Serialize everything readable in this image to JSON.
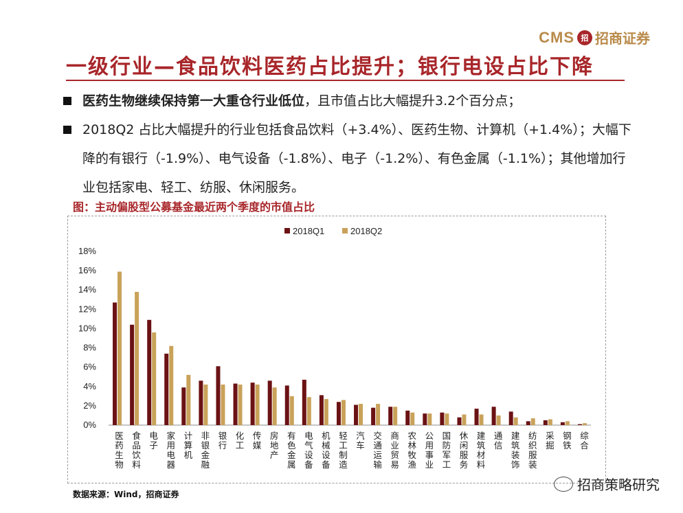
{
  "header": {
    "logo_cms": "CMS",
    "logo_badge": "招",
    "logo_name": "招商证券",
    "title": "一级行业—食品饮料医药占比提升；银行电设占比下降"
  },
  "bullets": {
    "b1_strong": "医药生物继续保持第一大重仓行业低位",
    "b1_rest": "，且市值占比大幅提升3.2个百分点；",
    "b2": "2018Q2 占比大幅提升的行业包括食品饮料（+3.4%）、医药生物、计算机（+1.4%）；大幅下降的有银行（-1.9%）、电气设备（-1.8%）、电子（-1.2%）、有色金属（-1.1%）；其他增加行业包括家电、轻工、纺服、休闲服务。"
  },
  "caption": "图：主动偏股型公募基金最近两个季度的市值占比",
  "source": "数据来源：Wind，招商证券",
  "watermark": "招商策略研究",
  "colors": {
    "q1": "#6b1214",
    "q2": "#c9a25a",
    "accent": "#a8262a"
  },
  "chart_data": {
    "type": "bar",
    "title": "",
    "categories": [
      "医药生物",
      "食品饮料",
      "电子",
      "家用电器",
      "计算机",
      "非银金融",
      "银行",
      "化工",
      "传媒",
      "房地产",
      "有色金属",
      "电气设备",
      "机械设备",
      "轻工制造",
      "汽车",
      "交通运输",
      "商业贸易",
      "农林牧渔",
      "公用事业",
      "国防军工",
      "休闲服务",
      "建筑材料",
      "通信",
      "建筑装饰",
      "纺织服装",
      "采掘",
      "钢铁",
      "综合"
    ],
    "series": [
      {
        "name": "2018Q1",
        "values": [
          12.7,
          10.4,
          10.9,
          7.4,
          3.9,
          4.6,
          6.1,
          4.3,
          4.4,
          4.6,
          4.1,
          4.7,
          3.1,
          2.4,
          2.1,
          1.8,
          1.9,
          1.5,
          1.2,
          1.3,
          0.8,
          1.7,
          1.9,
          1.4,
          0.4,
          0.5,
          0.3,
          0.1
        ]
      },
      {
        "name": "2018Q2",
        "values": [
          15.9,
          13.8,
          9.6,
          8.2,
          5.2,
          4.2,
          4.2,
          4.2,
          4.2,
          3.9,
          3.0,
          2.9,
          2.7,
          2.6,
          2.2,
          2.2,
          1.9,
          1.3,
          1.2,
          1.2,
          1.1,
          1.1,
          1.0,
          0.8,
          0.7,
          0.6,
          0.4,
          0.2
        ]
      }
    ],
    "ylim": [
      0,
      18
    ],
    "yticks": [
      "0%",
      "2%",
      "4%",
      "6%",
      "8%",
      "10%",
      "12%",
      "14%",
      "16%",
      "18%"
    ],
    "legend_position": "top"
  }
}
